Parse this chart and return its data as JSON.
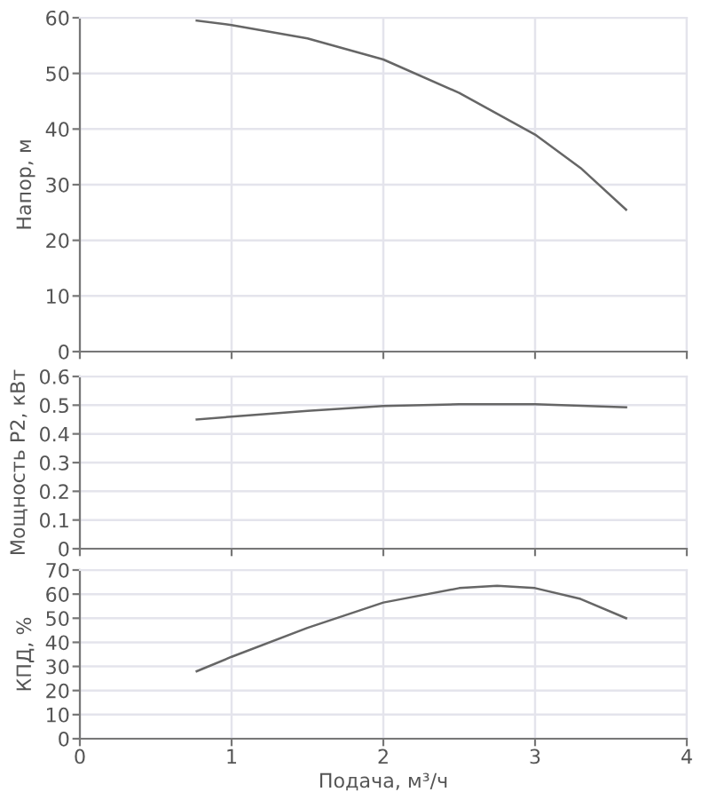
{
  "chart_data": [
    {
      "type": "line",
      "ylabel": "Напор, м",
      "xlim": [
        0,
        4
      ],
      "xticks": [
        0,
        1,
        2,
        3,
        4
      ],
      "ylim": [
        0,
        60
      ],
      "yticks": [
        0,
        10,
        20,
        30,
        40,
        50,
        60
      ],
      "tick_labels": "y",
      "grid": true,
      "series": [
        {
          "color": "#666666",
          "x": [
            0.77,
            1,
            1.5,
            2,
            2.5,
            3,
            3.3,
            3.6
          ],
          "values": [
            59.5,
            58.7,
            56.3,
            52.5,
            46.5,
            39,
            33,
            25.5
          ]
        }
      ]
    },
    {
      "type": "line",
      "ylabel": "Мощность P2, кВт",
      "xlim": [
        0,
        4
      ],
      "xticks": [
        0,
        1,
        2,
        3,
        4
      ],
      "ylim": [
        0,
        0.6
      ],
      "yticks": [
        0,
        0.1,
        0.2,
        0.3,
        0.4,
        0.5,
        0.6
      ],
      "tick_labels": "y",
      "grid": true,
      "series": [
        {
          "color": "#666666",
          "x": [
            0.77,
            1,
            1.5,
            2,
            2.5,
            3,
            3.6
          ],
          "values": [
            0.45,
            0.46,
            0.48,
            0.497,
            0.503,
            0.503,
            0.493
          ]
        }
      ]
    },
    {
      "type": "line",
      "xlabel": "Подача, м³/ч",
      "ylabel": "КПД, %",
      "xlim": [
        0,
        4
      ],
      "xticks": [
        0,
        1,
        2,
        3,
        4
      ],
      "ylim": [
        0,
        70
      ],
      "yticks": [
        0,
        10,
        20,
        30,
        40,
        50,
        60,
        70
      ],
      "grid": true,
      "series": [
        {
          "color": "#666666",
          "x": [
            0.77,
            1,
            1.5,
            2,
            2.5,
            2.75,
            3,
            3.3,
            3.6
          ],
          "values": [
            28,
            34,
            46,
            56.5,
            62.5,
            63.5,
            62.5,
            58,
            50
          ]
        }
      ]
    }
  ]
}
